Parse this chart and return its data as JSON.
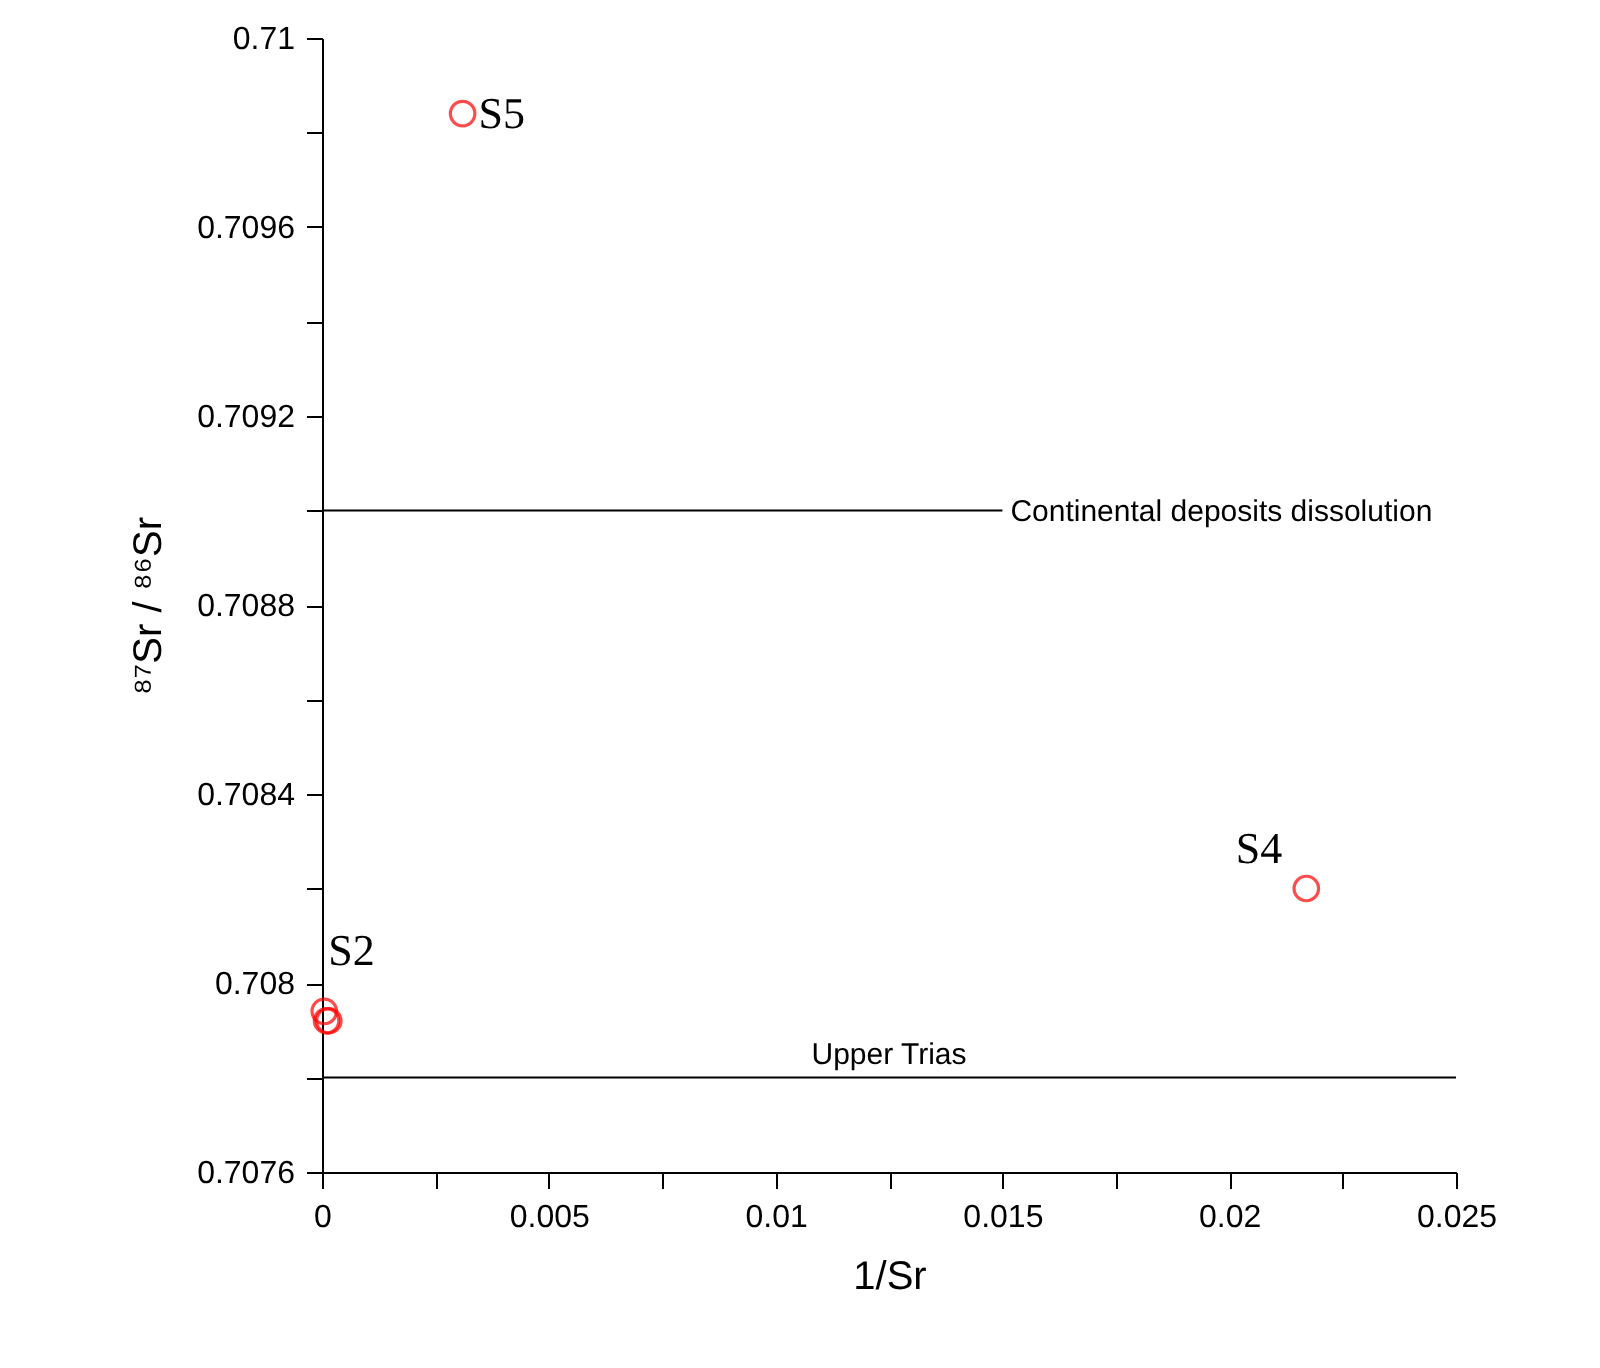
{
  "chart_data": {
    "type": "scatter",
    "xlabel": "1/Sr",
    "ylabel": "⁸⁷Sr / ⁸⁶Sr",
    "x": [
      5e-05,
      0.0001,
      0.00015,
      0.0031,
      0.0217
    ],
    "series": [
      {
        "color": "#ff0000",
        "values": [
          0.70794,
          0.70792,
          0.70792,
          0.70984,
          0.7082
        ]
      }
    ],
    "marker": "circle",
    "grid": false,
    "xlim": [
      0,
      0.025
    ],
    "ylim": [
      0.7076,
      0.71
    ],
    "xticks": [
      0,
      {
        "value": 0.0025,
        "label": null
      },
      0.005,
      {
        "value": 0.0075,
        "label": null
      },
      0.01,
      {
        "value": 0.0125,
        "label": null
      },
      0.015,
      {
        "value": 0.0175,
        "label": null
      },
      0.02,
      {
        "value": 0.0225,
        "label": null
      },
      0.025
    ],
    "yticks": [
      0.7076,
      {
        "value": 0.7078,
        "label": null
      },
      0.708,
      {
        "value": 0.7082,
        "label": null
      },
      0.7084,
      {
        "value": 0.7086,
        "label": null
      },
      0.7088,
      {
        "value": 0.709,
        "label": null
      },
      0.7092,
      {
        "value": 0.7094,
        "label": null
      },
      0.7096,
      {
        "value": 0.7098,
        "label": null
      },
      0.71
    ],
    "ref_lines": [
      {
        "axis": "y",
        "value": 0.709,
        "label": "Continental deposits dissolution"
      },
      {
        "axis": "y",
        "value": 0.7078,
        "label": "Upper Trias"
      }
    ],
    "annotations": [
      {
        "text": "S2",
        "x": 5e-05,
        "y": 0.70794
      },
      {
        "text": "S5",
        "x": 0.0031,
        "y": 0.70984
      },
      {
        "text": "S4",
        "x": 0.0217,
        "y": 0.7082
      }
    ]
  }
}
